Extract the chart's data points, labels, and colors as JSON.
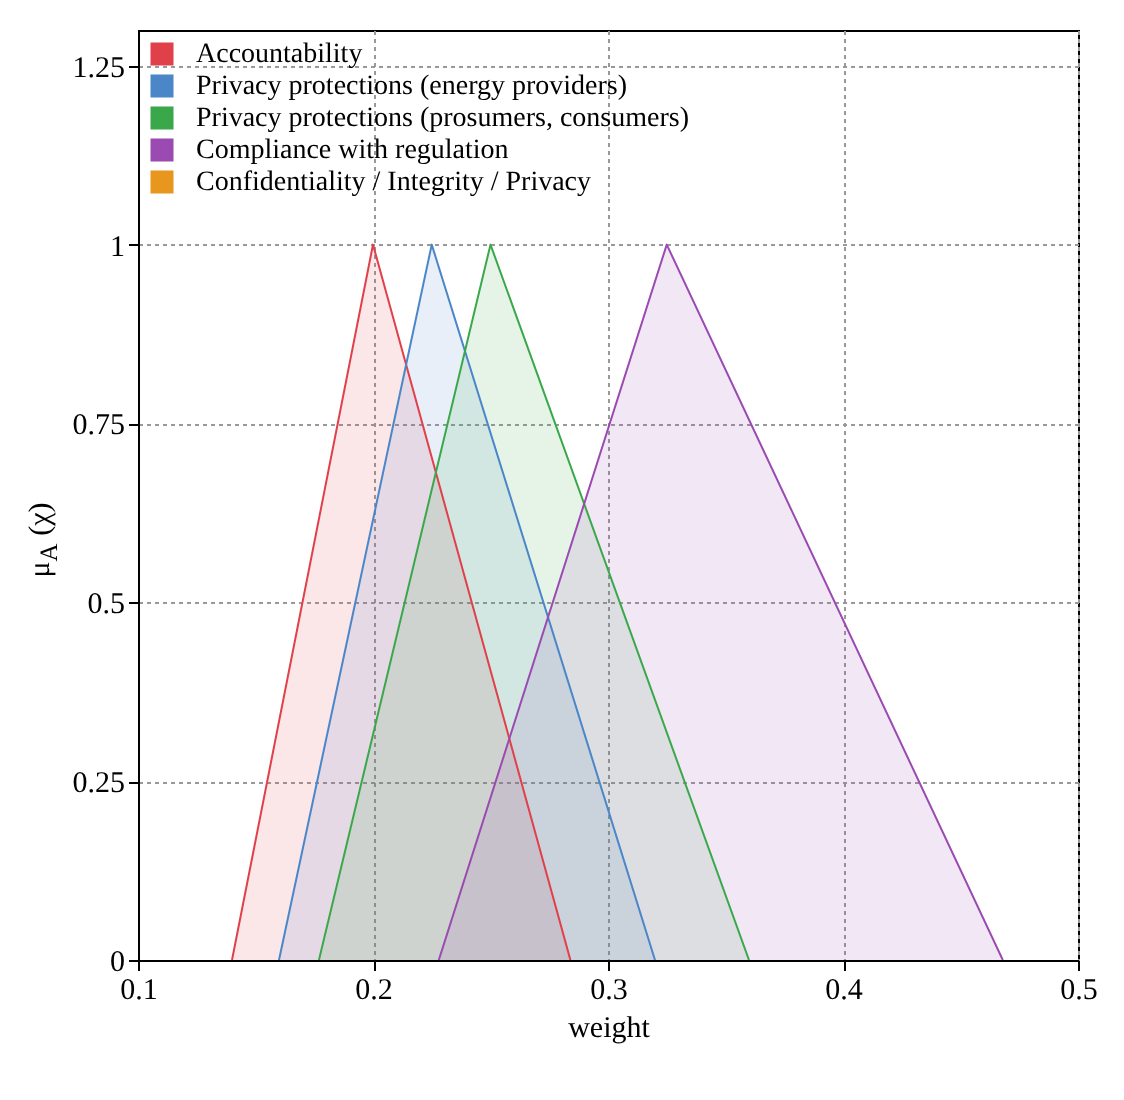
{
  "chart_data": {
    "type": "area",
    "xlabel": "weight",
    "ylabel": "μ$_{A}$ (χ)",
    "xlim": [
      0.1,
      0.5
    ],
    "xticks": [
      0.1,
      0.2,
      0.3,
      0.4,
      0.5
    ],
    "ylim": [
      0,
      1.3
    ],
    "yticks": [
      0,
      0.25,
      0.5,
      0.75,
      1,
      1.25
    ],
    "grid": true,
    "legend": "top left",
    "series": [
      {
        "name": "Accountability",
        "color": "#e0404a",
        "x": [
          0.14,
          0.2,
          0.284
        ],
        "values": [
          0,
          1,
          0
        ]
      },
      {
        "name": "Privacy protections (energy providers)",
        "color": "#4a86c8",
        "x": [
          0.16,
          0.225,
          0.32
        ],
        "values": [
          0,
          1,
          0
        ]
      },
      {
        "name": "Privacy protections (prosumers, consumers)",
        "color": "#3aa84a",
        "x": [
          0.177,
          0.25,
          0.36
        ],
        "values": [
          0,
          1,
          0
        ]
      },
      {
        "name": "Compliance with regulation",
        "color": "#9a4ab0",
        "x": [
          0.228,
          0.325,
          0.468
        ],
        "values": [
          0,
          1,
          0
        ]
      },
      {
        "name": "Confidentiality / Integrity / Privacy",
        "color": "#e8961e"
      }
    ]
  }
}
